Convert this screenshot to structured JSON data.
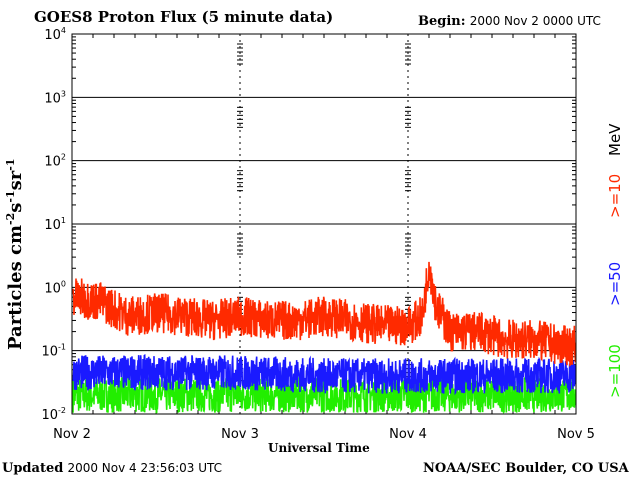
{
  "header": {
    "title": "GOES8 Proton Flux (5 minute data)",
    "begin_label": "Begin:",
    "begin_value": "2000 Nov 2 0000 UTC"
  },
  "footer": {
    "updated_label": "Updated",
    "updated_value": "2000 Nov  4 23:56:03 UTC",
    "source": "NOAA/SEC Boulder, CO USA"
  },
  "axes": {
    "ylabel_main": "Particles cm",
    "ylabel_sup1": "-2",
    "ylabel_s": "s",
    "ylabel_sup2": "-1",
    "ylabel_sr": "sr",
    "ylabel_sup3": "-1",
    "xlabel": "Universal Time",
    "unit_label": "MeV"
  },
  "legend": {
    "items": [
      {
        "label": ">=10",
        "color": "#ff2a00"
      },
      {
        "label": ">=50",
        "color": "#1a1aff"
      },
      {
        "label": ">=100",
        "color": "#22ee00"
      }
    ]
  },
  "chart_data": {
    "type": "line",
    "title": "GOES8 Proton Flux (5 minute data)",
    "xlabel": "Universal Time",
    "ylabel": "Particles cm-2s-1sr-1",
    "yscale": "log",
    "ylim": [
      0.01,
      10000
    ],
    "xlim": [
      "2000-11-02 00:00",
      "2000-11-05 00:00"
    ],
    "x_tick_labels": [
      "Nov 2",
      "Nov 3",
      "Nov 4",
      "Nov 5"
    ],
    "y_tick_labels": [
      {
        "base": "10",
        "exp": "-2"
      },
      {
        "base": "10",
        "exp": "-1"
      },
      {
        "base": "10",
        "exp": "0"
      },
      {
        "base": "10",
        "exp": "1"
      },
      {
        "base": "10",
        "exp": "2"
      },
      {
        "base": "10",
        "exp": "3"
      },
      {
        "base": "10",
        "exp": "4"
      }
    ],
    "grid": true,
    "series": [
      {
        "name": ">=10",
        "color": "#ff2a00",
        "x": [
          "2000-11-02 00:00",
          "2000-11-02 04:00",
          "2000-11-02 08:00",
          "2000-11-02 12:00",
          "2000-11-02 16:00",
          "2000-11-02 20:00",
          "2000-11-03 00:00",
          "2000-11-03 04:00",
          "2000-11-03 08:00",
          "2000-11-03 12:00",
          "2000-11-03 16:00",
          "2000-11-03 20:00",
          "2000-11-04 00:00",
          "2000-11-04 02:00",
          "2000-11-04 03:00",
          "2000-11-04 04:00",
          "2000-11-04 06:00",
          "2000-11-04 10:00",
          "2000-11-04 14:00",
          "2000-11-04 18:00",
          "2000-11-04 22:00",
          "2000-11-05 00:00"
        ],
        "values": [
          0.7,
          0.6,
          0.35,
          0.4,
          0.35,
          0.3,
          0.35,
          0.3,
          0.3,
          0.35,
          0.3,
          0.25,
          0.25,
          0.35,
          2.5,
          0.5,
          0.2,
          0.2,
          0.15,
          0.15,
          0.12,
          0.12
        ]
      },
      {
        "name": ">=50",
        "color": "#1a1aff",
        "x": [
          "2000-11-02 00:00",
          "2000-11-02 12:00",
          "2000-11-03 00:00",
          "2000-11-03 12:00",
          "2000-11-04 00:00",
          "2000-11-04 12:00",
          "2000-11-05 00:00"
        ],
        "values": [
          0.045,
          0.045,
          0.045,
          0.04,
          0.04,
          0.04,
          0.04
        ]
      },
      {
        "name": ">=100",
        "color": "#22ee00",
        "x": [
          "2000-11-02 00:00",
          "2000-11-02 12:00",
          "2000-11-03 00:00",
          "2000-11-03 12:00",
          "2000-11-04 00:00",
          "2000-11-04 12:00",
          "2000-11-05 00:00"
        ],
        "values": [
          0.02,
          0.02,
          0.02,
          0.02,
          0.02,
          0.02,
          0.02
        ]
      }
    ]
  }
}
